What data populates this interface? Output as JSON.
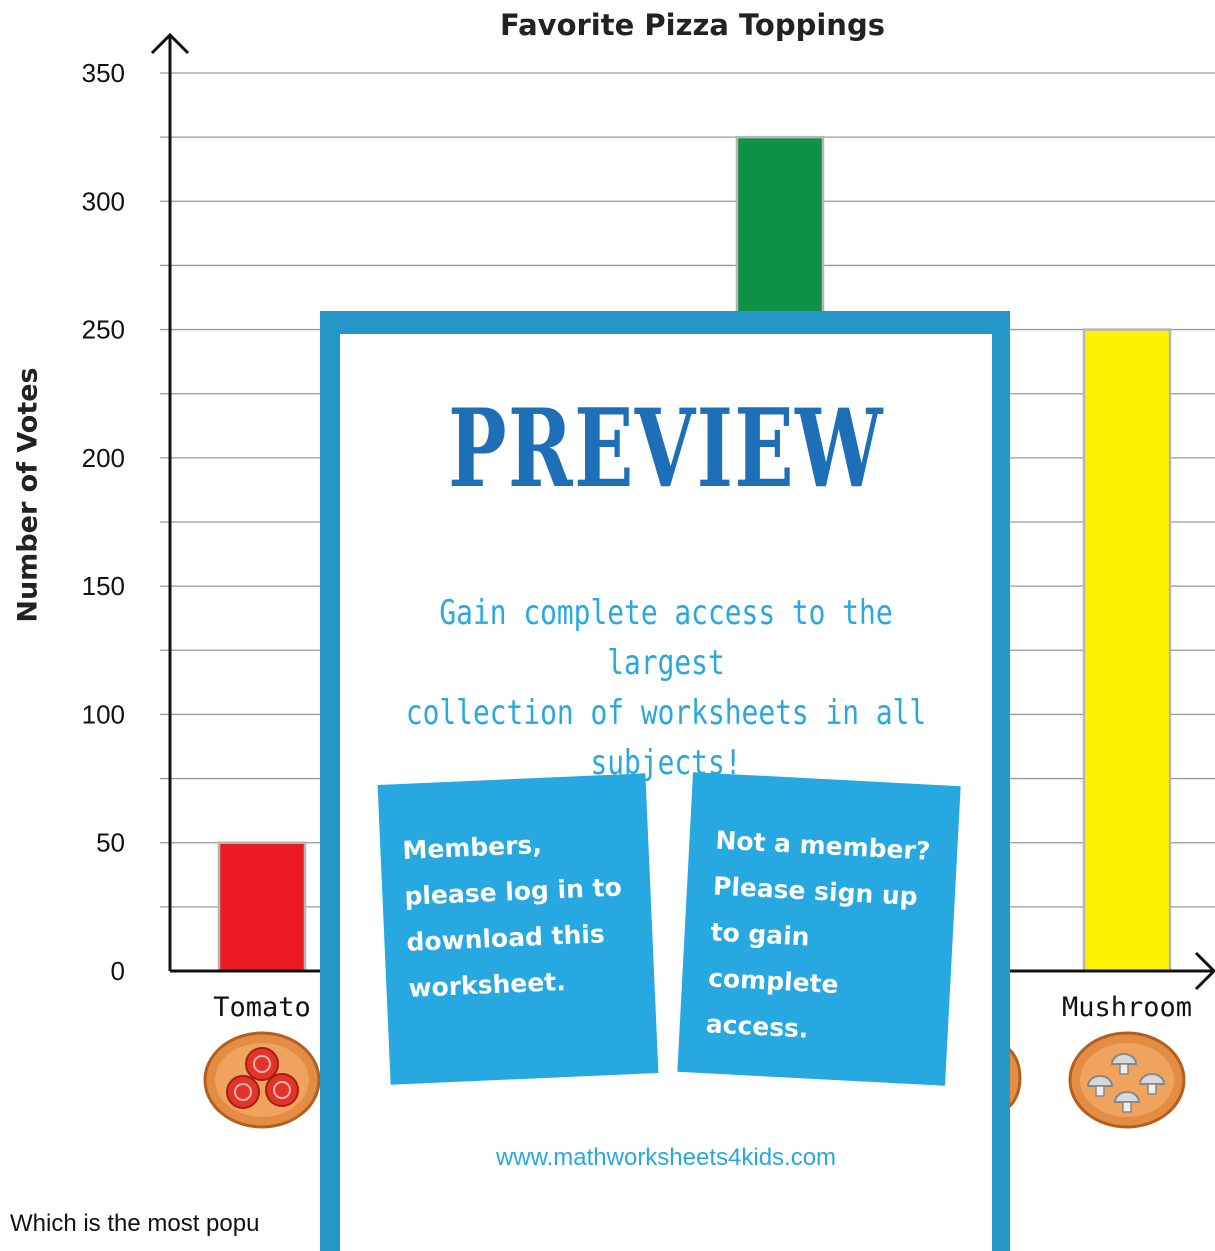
{
  "chart_data": {
    "type": "bar",
    "title": "Favorite Pizza Toppings",
    "ylabel": "Number of Votes",
    "xlabel": "",
    "ylim": [
      0,
      350
    ],
    "yticks": [
      0,
      50,
      100,
      150,
      200,
      250,
      300,
      350
    ],
    "categories": [
      "Tomato",
      "",
      "",
      "Mushroom"
    ],
    "values": [
      50,
      null,
      325,
      250
    ],
    "bar_colors": [
      "#ed1c24",
      "#cccccc",
      "#0f9246",
      "#fff200"
    ],
    "grid": true,
    "legend": "none"
  },
  "question_text": "Which is the most popu",
  "overlay": {
    "title": "PREVIEW",
    "promo_line1": "Gain complete access to the largest",
    "promo_line2": "collection of worksheets in all subjects!",
    "members_text": "Members, please log in to download this worksheet.",
    "non_members_text": "Not a member? Please sign up to gain complete access.",
    "site_url": "www.mathworksheets4kids.com"
  },
  "colors": {
    "overlay_border": "#2499c9",
    "overlay_title": "#1e6fb8",
    "accent": "#29a8e0",
    "card": "#27a8e0"
  },
  "icons": [
    "tomato-pizza-icon",
    "mushroom-pizza-icon",
    "pizza-icon"
  ]
}
